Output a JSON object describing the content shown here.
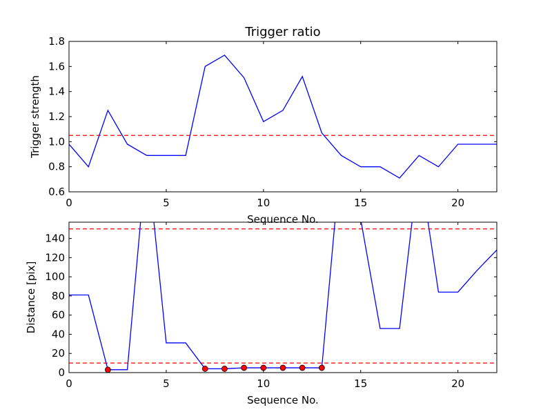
{
  "chart_data": [
    {
      "type": "line",
      "title": "Trigger ratio",
      "xlabel": "Sequence No.",
      "ylabel": "Trigger strength",
      "xlim": [
        0,
        22
      ],
      "ylim": [
        0.6,
        1.8
      ],
      "xticks": [
        0,
        5,
        10,
        15,
        20
      ],
      "yticks": [
        0.6,
        0.8,
        1.0,
        1.2,
        1.4,
        1.6,
        1.8
      ],
      "ytick_decimals": 1,
      "grid": false,
      "series": [
        {
          "color": "#0000ff",
          "x": [
            0,
            1,
            2,
            3,
            4,
            5,
            6,
            7,
            8,
            9,
            10,
            11,
            12,
            13,
            14,
            15,
            16,
            17,
            18,
            19,
            20,
            21,
            22
          ],
          "values": [
            0.98,
            0.8,
            1.25,
            0.98,
            0.89,
            0.89,
            0.89,
            1.6,
            1.69,
            1.51,
            1.16,
            1.25,
            1.52,
            1.07,
            0.89,
            0.8,
            0.8,
            0.71,
            0.89,
            0.8,
            0.98,
            0.98,
            0.98
          ]
        }
      ],
      "thresholds": [
        {
          "y": 1.05,
          "color": "#ff0000"
        }
      ],
      "markers": []
    },
    {
      "type": "line",
      "title": "",
      "xlabel": "Sequence No.",
      "ylabel": "Distance [pix]",
      "xlim": [
        0,
        22
      ],
      "ylim": [
        0,
        157
      ],
      "xticks": [
        0,
        5,
        10,
        15,
        20
      ],
      "yticks": [
        0,
        20,
        40,
        60,
        80,
        100,
        120,
        140
      ],
      "ytick_decimals": 0,
      "grid": false,
      "series": [
        {
          "color": "#0000ff",
          "x": [
            0,
            1,
            2,
            3,
            4,
            5,
            6,
            7,
            8,
            9,
            10,
            11,
            12,
            13,
            14,
            15,
            16,
            17,
            18,
            19,
            20,
            21,
            22
          ],
          "values": [
            81,
            81,
            3,
            3,
            230,
            31,
            31,
            4,
            4,
            5,
            5,
            5,
            5,
            5,
            230,
            160,
            46,
            46,
            220,
            84,
            84,
            107,
            128
          ]
        }
      ],
      "thresholds": [
        {
          "y": 150,
          "color": "#ff0000"
        },
        {
          "y": 10,
          "color": "#ff0000"
        }
      ],
      "markers": [
        {
          "x": 2,
          "y": 3
        },
        {
          "x": 7,
          "y": 4
        },
        {
          "x": 8,
          "y": 4
        },
        {
          "x": 9,
          "y": 5
        },
        {
          "x": 10,
          "y": 5
        },
        {
          "x": 11,
          "y": 5
        },
        {
          "x": 12,
          "y": 5
        },
        {
          "x": 13,
          "y": 5
        }
      ],
      "marker_color": "#ff0000"
    }
  ]
}
